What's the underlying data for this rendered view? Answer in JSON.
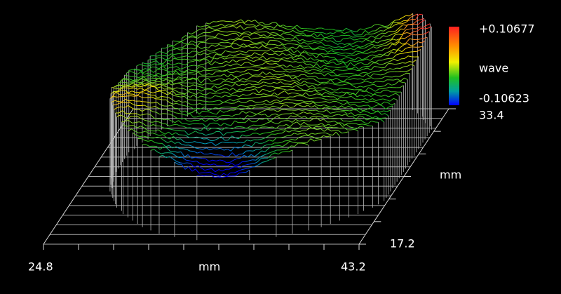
{
  "colorbar": {
    "max": "+0.10677",
    "unit": "wave",
    "min": "-0.10623"
  },
  "x_axis": {
    "min": "24.8",
    "label": "mm",
    "max": "43.2"
  },
  "y_axis": {
    "max": "33.4",
    "label": "mm",
    "min": "17.2"
  }
}
